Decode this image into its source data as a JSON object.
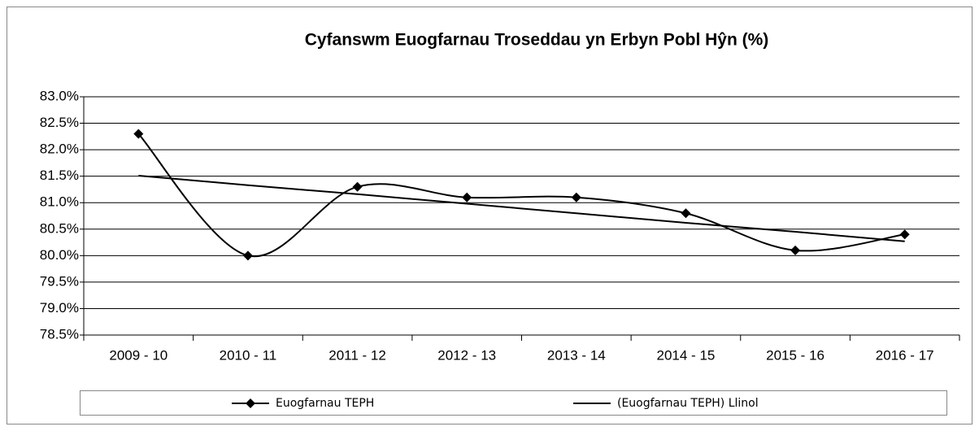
{
  "chart_data": {
    "type": "line",
    "title": "Cyfanswm Euogfarnau Troseddau yn Erbyn Pobl Hŷn (%)",
    "categories": [
      "2009 - 10",
      "2010 - 11",
      "2011 - 12",
      "2012 - 13",
      "2013 - 14",
      "2014 - 15",
      "2015 - 16",
      "2016 - 17"
    ],
    "series": [
      {
        "name": "Euogfarnau TEPH",
        "color": "#000000",
        "marker": "diamond",
        "smooth": true,
        "values": [
          82.3,
          80.0,
          81.3,
          81.1,
          81.1,
          80.8,
          80.1,
          80.4
        ]
      },
      {
        "name": "(Euogfarnau TEPH) Llinol",
        "color": "#000000",
        "marker": "none",
        "smooth": false,
        "values": [
          81.51,
          81.33,
          81.16,
          80.98,
          80.8,
          80.62,
          80.45,
          80.27
        ]
      }
    ],
    "ylim": [
      78.5,
      83.0
    ],
    "yticks": [
      {
        "value": 78.5,
        "label": "78.5%"
      },
      {
        "value": 79.0,
        "label": "79.0%"
      },
      {
        "value": 79.5,
        "label": "79.5%"
      },
      {
        "value": 80.0,
        "label": "80.0%"
      },
      {
        "value": 80.5,
        "label": "80.5%"
      },
      {
        "value": 81.0,
        "label": "81.0%"
      },
      {
        "value": 81.5,
        "label": "81.5%"
      },
      {
        "value": 82.0,
        "label": "82.0%"
      },
      {
        "value": 82.5,
        "label": "82.5%"
      },
      {
        "value": 83.0,
        "label": "83.0%"
      }
    ],
    "grid": true,
    "legend": "bottom"
  }
}
